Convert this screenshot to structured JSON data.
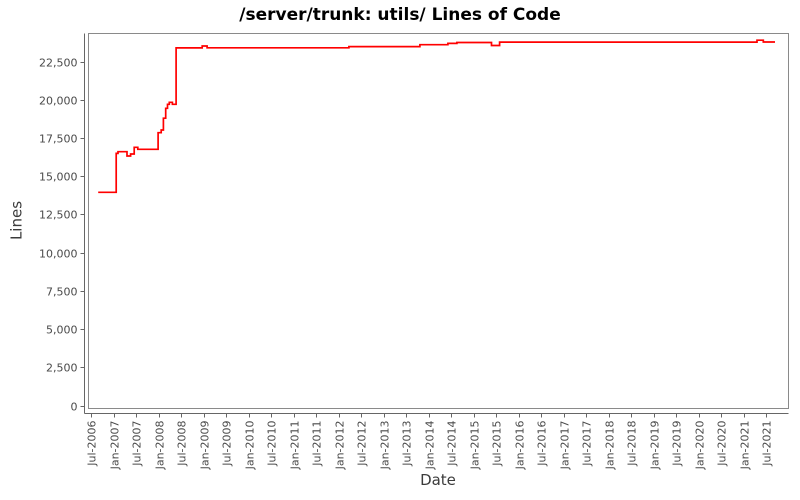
{
  "chart_data": {
    "type": "line",
    "step": true,
    "title": "/server/trunk: utils/ Lines of Code",
    "xlabel": "Date",
    "ylabel": "Lines",
    "grid": false,
    "legend": "none",
    "xlim_years": [
      2006.43,
      2022.0
    ],
    "ylim": [
      0,
      24400
    ],
    "x_tick_labels": [
      "Jul-2006",
      "Jan-2007",
      "Jul-2007",
      "Jan-2008",
      "Jul-2008",
      "Jan-2009",
      "Jul-2009",
      "Jan-2010",
      "Jul-2010",
      "Jan-2011",
      "Jul-2011",
      "Jan-2012",
      "Jul-2012",
      "Jan-2013",
      "Jul-2013",
      "Jan-2014",
      "Jul-2014",
      "Jan-2015",
      "Jul-2015",
      "Jan-2016",
      "Jul-2016",
      "Jan-2017",
      "Jul-2017",
      "Jan-2018",
      "Jul-2018",
      "Jan-2019",
      "Jul-2019",
      "Jan-2020",
      "Jul-2020",
      "Jan-2021",
      "Jul-2021"
    ],
    "y_ticks": [
      {
        "value": 0,
        "label": "0"
      },
      {
        "value": 2500,
        "label": "2,500"
      },
      {
        "value": 5000,
        "label": "5,000"
      },
      {
        "value": 7500,
        "label": "7,500"
      },
      {
        "value": 10000,
        "label": "10,000"
      },
      {
        "value": 12500,
        "label": "12,500"
      },
      {
        "value": 15000,
        "label": "15,000"
      },
      {
        "value": 17500,
        "label": "17,500"
      },
      {
        "value": 20000,
        "label": "20,000"
      },
      {
        "value": 22500,
        "label": "22,500"
      }
    ],
    "series": [
      {
        "name": "Lines of Code",
        "color": "#ff0000",
        "points": [
          [
            2006.66,
            13950
          ],
          [
            2007.06,
            13950
          ],
          [
            2007.06,
            16500
          ],
          [
            2007.1,
            16500
          ],
          [
            2007.1,
            16610
          ],
          [
            2007.3,
            16610
          ],
          [
            2007.3,
            16330
          ],
          [
            2007.38,
            16330
          ],
          [
            2007.38,
            16460
          ],
          [
            2007.46,
            16460
          ],
          [
            2007.46,
            16900
          ],
          [
            2007.54,
            16900
          ],
          [
            2007.54,
            16770
          ],
          [
            2007.99,
            16770
          ],
          [
            2007.99,
            17855
          ],
          [
            2008.06,
            17855
          ],
          [
            2008.06,
            18030
          ],
          [
            2008.11,
            18030
          ],
          [
            2008.11,
            18800
          ],
          [
            2008.16,
            18800
          ],
          [
            2008.16,
            19450
          ],
          [
            2008.2,
            19450
          ],
          [
            2008.2,
            19715
          ],
          [
            2008.24,
            19715
          ],
          [
            2008.24,
            19845
          ],
          [
            2008.31,
            19845
          ],
          [
            2008.31,
            19715
          ],
          [
            2008.39,
            19715
          ],
          [
            2008.39,
            23400
          ],
          [
            2008.97,
            23400
          ],
          [
            2008.97,
            23530
          ],
          [
            2009.08,
            23530
          ],
          [
            2009.08,
            23410
          ],
          [
            2012.23,
            23410
          ],
          [
            2012.23,
            23490
          ],
          [
            2013.81,
            23490
          ],
          [
            2013.81,
            23615
          ],
          [
            2014.43,
            23615
          ],
          [
            2014.43,
            23700
          ],
          [
            2014.63,
            23700
          ],
          [
            2014.63,
            23755
          ],
          [
            2015.4,
            23755
          ],
          [
            2015.4,
            23560
          ],
          [
            2015.58,
            23560
          ],
          [
            2015.58,
            23785
          ],
          [
            2021.3,
            23785
          ],
          [
            2021.3,
            23905
          ],
          [
            2021.44,
            23905
          ],
          [
            2021.44,
            23790
          ],
          [
            2021.7,
            23790
          ]
        ]
      }
    ],
    "colors": {
      "line": "#ff0000",
      "plot_border": "#8a8a8a",
      "axis": "#666666",
      "tick_label": "#4a4a4a",
      "title_text": "#000000",
      "axis_label_text": "#3b3b3b"
    }
  }
}
